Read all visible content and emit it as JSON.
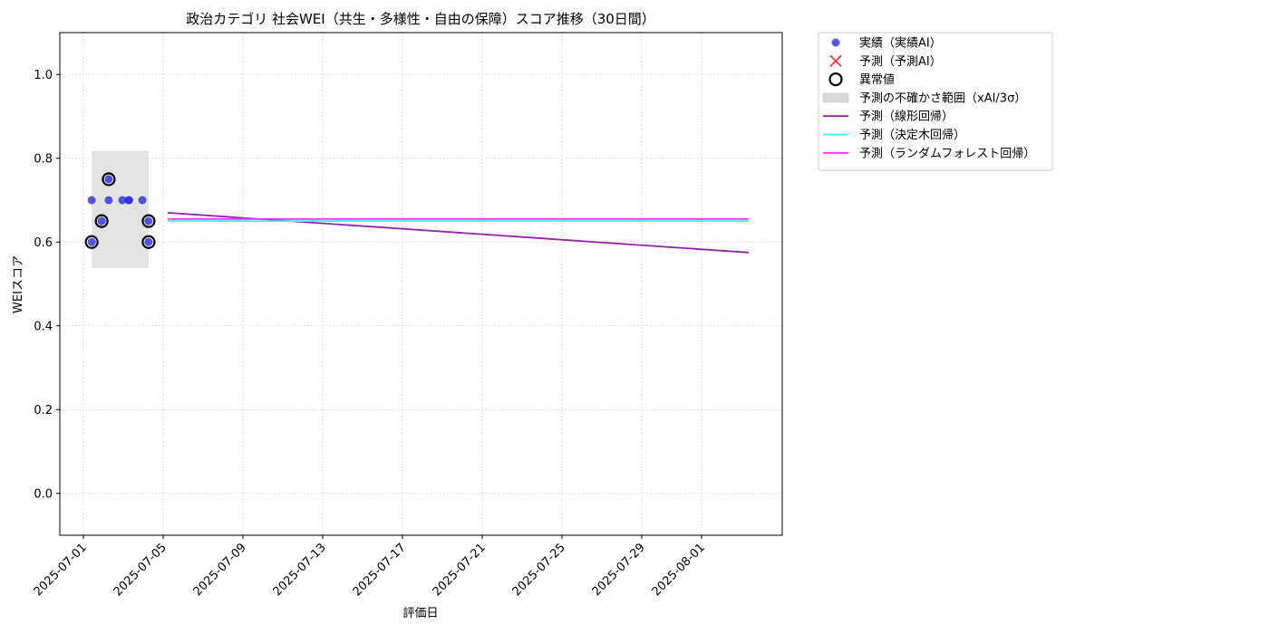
{
  "chart_data": {
    "type": "scatter",
    "title": "政治カテゴリ 社会WEI（共生・多様性・自由の保障）スコア推移（30日間）",
    "xlabel": "評価日",
    "ylabel": "WEIスコア",
    "xlim": [
      "2025-06-29T19:40",
      "2025-08-05T01:10"
    ],
    "xticks": [
      "2025-07-01",
      "2025-07-05",
      "2025-07-09",
      "2025-07-13",
      "2025-07-17",
      "2025-07-21",
      "2025-07-25",
      "2025-07-29",
      "2025-08-01"
    ],
    "ylim": [
      -0.1,
      1.1
    ],
    "yticks": [
      {
        "value": 0,
        "label": "0.0"
      },
      {
        "value": 0.2,
        "label": "0.2"
      },
      {
        "value": 0.4,
        "label": "0.4"
      },
      {
        "value": 0.6,
        "label": "0.6"
      },
      {
        "value": 0.8,
        "label": "0.8"
      },
      {
        "value": 1,
        "label": "1.0"
      }
    ],
    "grid": true,
    "legend": "outside upper right",
    "series": [
      {
        "name": "実績（実績AI）",
        "type": "dot",
        "color": "#2a2ae6",
        "x": [
          "2025-07-01T10:00",
          "2025-07-01T10:00",
          "2025-07-01T22:00",
          "2025-07-02T06:30",
          "2025-07-02T06:30",
          "2025-07-02T23:00",
          "2025-07-03T06:30",
          "2025-07-03T07:00",
          "2025-07-03T23:00",
          "2025-07-04T06:30",
          "2025-07-04T06:30"
        ],
        "values": [
          0.7,
          0.6,
          0.65,
          0.75,
          0.7,
          0.7,
          0.7,
          0.7,
          0.7,
          0.65,
          0.6
        ]
      },
      {
        "name": "予測（予測AI）",
        "type": "cross",
        "color": "#ff3333",
        "x": [],
        "values": []
      },
      {
        "name": "異常値",
        "type": "ring",
        "color": "#000000",
        "x": [
          "2025-07-01T10:00",
          "2025-07-01T22:00",
          "2025-07-02T06:30",
          "2025-07-04T06:30",
          "2025-07-04T06:30"
        ],
        "values": [
          0.6,
          0.65,
          0.75,
          0.65,
          0.6
        ]
      },
      {
        "name": "予測の不確かさ範囲（xAI/3σ）",
        "type": "band",
        "color": "#d9d9d9",
        "x": [
          "2025-07-01T10:00",
          "2025-07-04T06:30"
        ],
        "lower": [
          0.538,
          0.538
        ],
        "upper": [
          0.818,
          0.818
        ]
      },
      {
        "name": "予測（線形回帰）",
        "type": "line",
        "color": "#8e24aa",
        "x": [
          "2025-07-05T05:30",
          "2025-08-03T08:40"
        ],
        "values": [
          0.67,
          0.575
        ]
      },
      {
        "name": "予測（決定木回帰）",
        "type": "line",
        "color": "#33ffff",
        "x": [
          "2025-07-05T05:30",
          "2025-08-03T08:40"
        ],
        "values": [
          0.65,
          0.65
        ]
      },
      {
        "name": "予測（ランダムフォレスト回帰）",
        "type": "line",
        "color": "#ff33ff",
        "x": [
          "2025-07-05T05:30",
          "2025-08-03T08:40"
        ],
        "values": [
          0.655,
          0.655
        ]
      }
    ]
  }
}
